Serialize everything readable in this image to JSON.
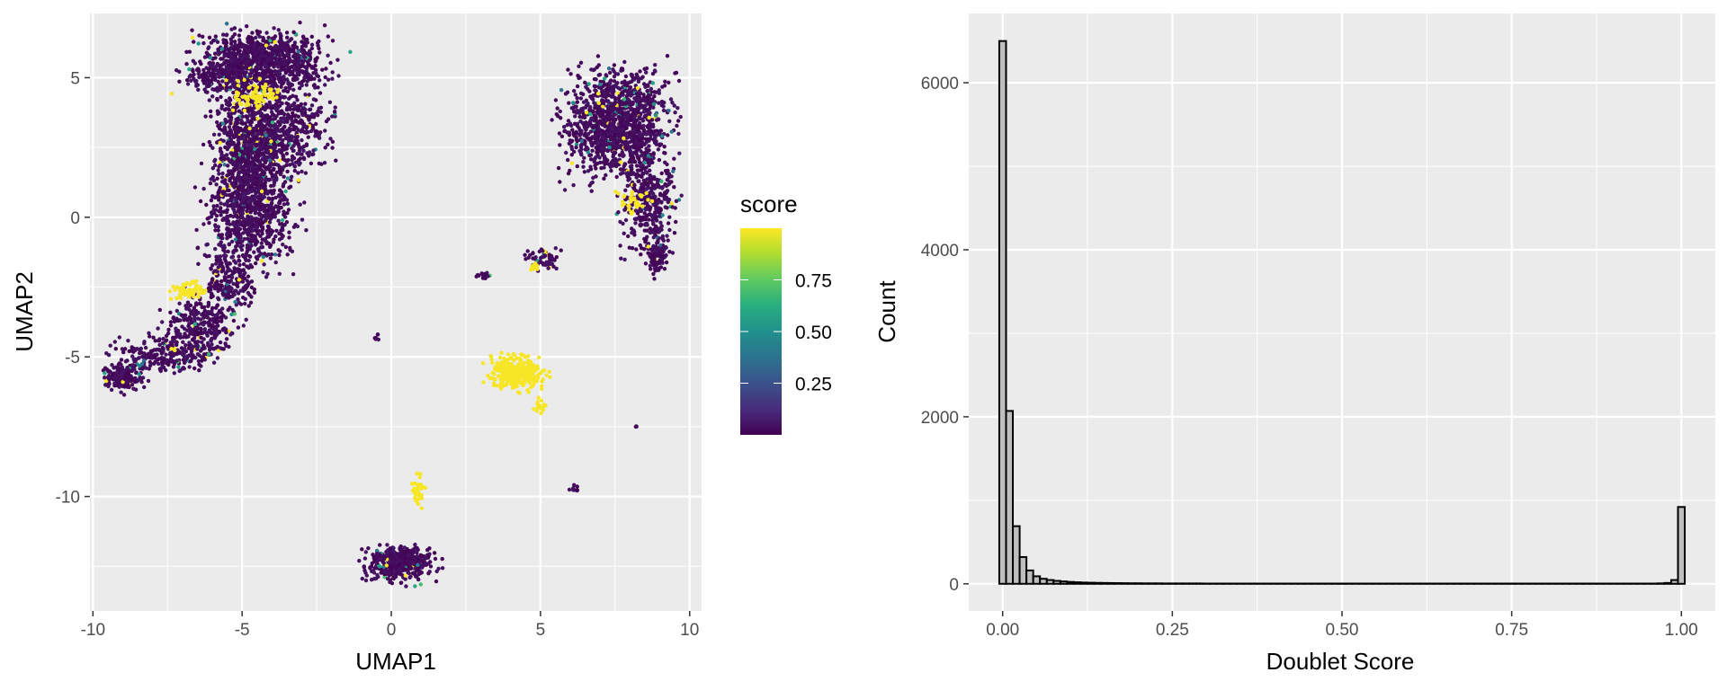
{
  "chart_data": [
    {
      "type": "scatter",
      "xlabel": "UMAP1",
      "ylabel": "UMAP2",
      "xlim": [
        -10.1,
        10.4
      ],
      "ylim": [
        -14.1,
        7.3
      ],
      "x_ticks": [
        -10,
        -5,
        0,
        5,
        10
      ],
      "y_ticks": [
        -10,
        -5,
        0,
        5
      ],
      "x_tick_labels": [
        "-10",
        "-5",
        "0",
        "5",
        "10"
      ],
      "y_tick_labels": [
        "-10",
        "-5",
        "0",
        "5"
      ],
      "grid": true,
      "colormap": "viridis",
      "color_range": [
        0,
        1
      ],
      "colors": {
        "panel_bg": "#ebebeb",
        "grid": "#ffffff",
        "low": "#440154",
        "high": "#fde725"
      },
      "legend": {
        "title": "score",
        "placement": "right",
        "ticks": [
          0.25,
          0.5,
          0.75
        ],
        "tick_labels": [
          "0.25",
          "0.50",
          "0.75"
        ]
      },
      "clusters": [
        {
          "cx": -4.3,
          "cy": 5.6,
          "sx": 1.0,
          "sy": 0.5,
          "n": 900,
          "score": 0.03
        },
        {
          "cx": -5.8,
          "cy": 5.0,
          "sx": 0.7,
          "sy": 0.25,
          "n": 150,
          "score": 0.03
        },
        {
          "cx": -4.1,
          "cy": 3.2,
          "sx": 0.9,
          "sy": 0.8,
          "n": 900,
          "score": 0.03
        },
        {
          "cx": -4.6,
          "cy": 4.3,
          "sx": 0.3,
          "sy": 0.25,
          "n": 70,
          "score": 0.99
        },
        {
          "cx": -4.8,
          "cy": 1.6,
          "sx": 0.5,
          "sy": 0.8,
          "n": 500,
          "score": 0.03
        },
        {
          "cx": -4.8,
          "cy": 0.0,
          "sx": 0.7,
          "sy": 0.9,
          "n": 600,
          "score": 0.03
        },
        {
          "cx": -5.4,
          "cy": -2.3,
          "sx": 0.4,
          "sy": 0.6,
          "n": 200,
          "score": 0.03
        },
        {
          "cx": -6.8,
          "cy": -2.6,
          "sx": 0.3,
          "sy": 0.15,
          "n": 60,
          "score": 0.99
        },
        {
          "cx": -6.4,
          "cy": -3.8,
          "sx": 0.5,
          "sy": 0.5,
          "n": 250,
          "score": 0.03
        },
        {
          "cx": -7.5,
          "cy": -4.9,
          "sx": 0.8,
          "sy": 0.3,
          "n": 250,
          "score": 0.03
        },
        {
          "cx": -9.0,
          "cy": -5.7,
          "sx": 0.3,
          "sy": 0.25,
          "n": 200,
          "score": 0.03
        },
        {
          "cx": 7.6,
          "cy": 3.4,
          "sx": 0.8,
          "sy": 0.9,
          "n": 1300,
          "score": 0.03
        },
        {
          "cx": 8.6,
          "cy": 0.5,
          "sx": 0.4,
          "sy": 0.8,
          "n": 350,
          "score": 0.03
        },
        {
          "cx": 8.9,
          "cy": -1.4,
          "sx": 0.15,
          "sy": 0.4,
          "n": 100,
          "score": 0.03
        },
        {
          "cx": 8.1,
          "cy": 0.5,
          "sx": 0.3,
          "sy": 0.2,
          "n": 30,
          "score": 0.99
        },
        {
          "cx": 5.1,
          "cy": -1.5,
          "sx": 0.25,
          "sy": 0.2,
          "n": 60,
          "score": 0.03
        },
        {
          "cx": 4.8,
          "cy": -1.8,
          "sx": 0.1,
          "sy": 0.08,
          "n": 12,
          "score": 0.99
        },
        {
          "cx": 3.1,
          "cy": -2.1,
          "sx": 0.15,
          "sy": 0.05,
          "n": 20,
          "score": 0.03
        },
        {
          "cx": 4.2,
          "cy": -5.6,
          "sx": 0.45,
          "sy": 0.3,
          "n": 300,
          "score": 0.99
        },
        {
          "cx": 5.0,
          "cy": -6.8,
          "sx": 0.1,
          "sy": 0.15,
          "n": 15,
          "score": 0.99
        },
        {
          "cx": -0.5,
          "cy": -4.3,
          "sx": 0.05,
          "sy": 0.05,
          "n": 6,
          "score": 0.35
        },
        {
          "cx": 8.2,
          "cy": -7.5,
          "sx": 0.03,
          "sy": 0.03,
          "n": 3,
          "score": 0.03
        },
        {
          "cx": 6.1,
          "cy": -9.7,
          "sx": 0.06,
          "sy": 0.06,
          "n": 8,
          "score": 0.03
        },
        {
          "cx": 0.9,
          "cy": -9.8,
          "sx": 0.1,
          "sy": 0.3,
          "n": 40,
          "score": 0.99
        },
        {
          "cx": 0.3,
          "cy": -12.4,
          "sx": 0.55,
          "sy": 0.3,
          "n": 450,
          "score": 0.03
        }
      ]
    },
    {
      "type": "bar",
      "subtype": "histogram",
      "xlabel": "Doublet Score",
      "ylabel": "Count",
      "xlim": [
        -0.05,
        1.05
      ],
      "ylim": [
        -325,
        6830
      ],
      "x_ticks": [
        0,
        0.25,
        0.5,
        0.75,
        1.0
      ],
      "y_ticks": [
        0,
        2000,
        4000,
        6000
      ],
      "x_tick_labels": [
        "0.00",
        "0.25",
        "0.50",
        "0.75",
        "1.00"
      ],
      "y_tick_labels": [
        "0",
        "2000",
        "4000",
        "6000"
      ],
      "grid": true,
      "bin_width": 0.01,
      "colors": {
        "panel_bg": "#ebebeb",
        "grid": "#ffffff",
        "fill": "#bebebe",
        "stroke": "#000000"
      },
      "bins_start": 0,
      "values": [
        6500,
        2070,
        690,
        320,
        160,
        90,
        60,
        45,
        35,
        28,
        22,
        18,
        15,
        13,
        11,
        10,
        9,
        8,
        7,
        6,
        6,
        5,
        5,
        5,
        4,
        4,
        4,
        4,
        4,
        4,
        3,
        3,
        3,
        3,
        3,
        3,
        3,
        3,
        3,
        3,
        3,
        3,
        3,
        3,
        3,
        3,
        3,
        3,
        3,
        3,
        3,
        3,
        3,
        3,
        3,
        3,
        3,
        3,
        3,
        3,
        3,
        3,
        3,
        3,
        3,
        3,
        3,
        3,
        3,
        3,
        3,
        3,
        3,
        3,
        3,
        3,
        3,
        3,
        3,
        3,
        3,
        3,
        3,
        3,
        3,
        3,
        3,
        3,
        3,
        3,
        3,
        3,
        3,
        3,
        3,
        3,
        3,
        5,
        10,
        45,
        920
      ]
    }
  ]
}
